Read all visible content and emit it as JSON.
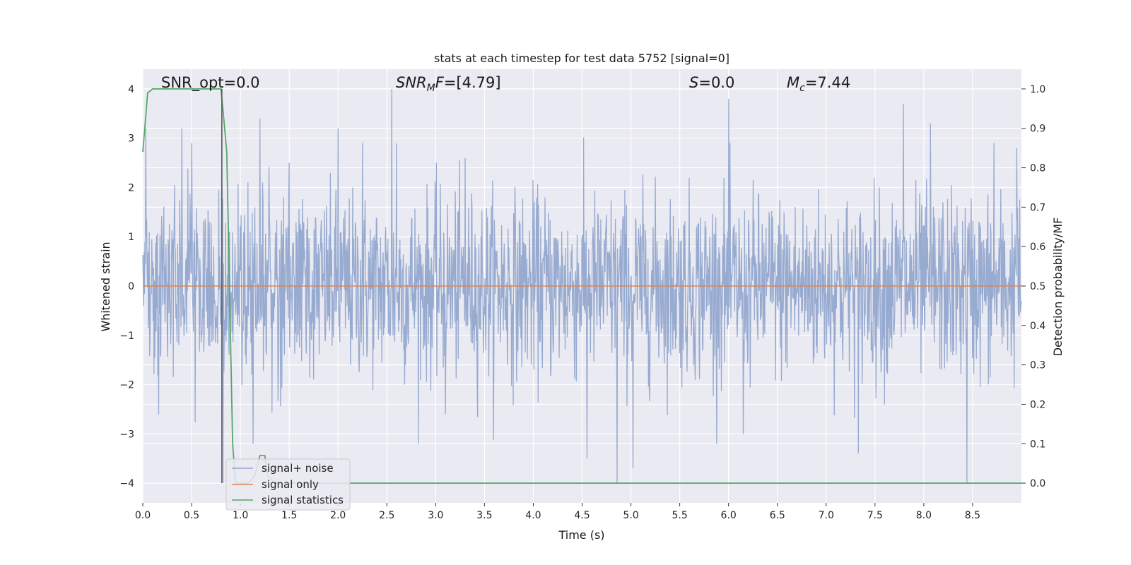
{
  "chart_data": {
    "type": "line",
    "title": "stats at each timestep for test data 5752 [signal=0]",
    "xlabel": "Time (s)",
    "ylabel": "Whitened strain",
    "ylabel_right": "Detection probability/MF",
    "xlim": [
      0.0,
      9.0
    ],
    "ylim": [
      -4.4,
      4.4
    ],
    "ylim_right": [
      -0.05,
      1.05
    ],
    "x_ticks": [
      "0.0",
      "0.5",
      "1.0",
      "1.5",
      "2.0",
      "2.5",
      "3.0",
      "3.5",
      "4.0",
      "4.5",
      "5.0",
      "5.5",
      "6.0",
      "6.5",
      "7.0",
      "7.5",
      "8.0",
      "8.5"
    ],
    "y_ticks": [
      "−4",
      "−3",
      "−2",
      "−1",
      "0",
      "1",
      "2",
      "3",
      "4"
    ],
    "y_ticks_right": [
      "0.0",
      "0.1",
      "0.2",
      "0.3",
      "0.4",
      "0.5",
      "0.6",
      "0.7",
      "0.8",
      "0.9",
      "1.0"
    ],
    "grid": true,
    "legend_position": "lower-left",
    "annotations": {
      "snr_opt": "SNR_opt=0.0",
      "snr_mf": "=[4.79]",
      "s_value": "=0.0",
      "mc_value": "=7.44"
    },
    "marker_line_x": 0.81,
    "series": [
      {
        "name": "signal+ noise",
        "color": "#92a6cd",
        "envelope": {
          "typical_amplitude": 1.6,
          "max": 4.0,
          "min": -4.0,
          "samples": 2048
        },
        "spikes": [
          [
            0.03,
            3.2
          ],
          [
            0.5,
            2.9
          ],
          [
            0.81,
            4.0
          ],
          [
            0.82,
            -4.0
          ],
          [
            1.2,
            3.4
          ],
          [
            1.13,
            -3.2
          ],
          [
            1.5,
            2.5
          ],
          [
            2.0,
            3.2
          ],
          [
            2.55,
            4.0
          ],
          [
            2.6,
            2.9
          ],
          [
            2.25,
            2.9
          ],
          [
            3.1,
            -2.6
          ],
          [
            3.3,
            2.6
          ],
          [
            4.55,
            -3.5
          ],
          [
            4.86,
            -4.0
          ],
          [
            5.02,
            -3.7
          ],
          [
            6.0,
            3.8
          ],
          [
            6.15,
            -3.0
          ],
          [
            7.33,
            -3.4
          ],
          [
            7.79,
            3.7
          ],
          [
            8.07,
            3.3
          ],
          [
            8.44,
            -4.0
          ],
          [
            8.72,
            2.9
          ],
          [
            8.95,
            2.8
          ]
        ]
      },
      {
        "name": "signal only",
        "color": "#dd8452",
        "x": [
          0.0,
          9.0
        ],
        "y": [
          0.0,
          0.0
        ]
      },
      {
        "name": "signal statistics",
        "color": "#55a868",
        "axis": "right",
        "x": [
          0.0,
          0.02,
          0.05,
          0.1,
          0.15,
          0.5,
          0.78,
          0.8,
          0.82,
          0.86,
          0.88,
          0.92,
          0.95,
          1.0,
          1.08,
          1.15,
          1.2,
          1.25,
          1.28,
          1.35,
          1.5,
          9.0
        ],
        "y": [
          0.84,
          0.9,
          0.99,
          1.0,
          1.0,
          1.0,
          1.0,
          1.0,
          0.95,
          0.84,
          0.6,
          0.1,
          0.0,
          0.0,
          0.0,
          0.02,
          0.07,
          0.07,
          0.02,
          0.0,
          0.0,
          0.0
        ]
      }
    ]
  }
}
